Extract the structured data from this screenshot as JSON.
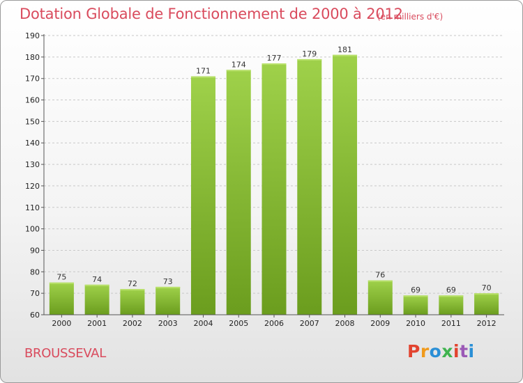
{
  "title": "Dotation Globale de Fonctionnement de 2000 à 2012",
  "unit_note": "(en milliers d'€)",
  "commune": "BROUSSEVAL",
  "logo_text": "Proxiti",
  "colors": {
    "title": "#d94b5d",
    "bar_top": "#9fd14a",
    "bar_bottom": "#6b9d1e",
    "grid": "#c8c8c8",
    "logo": [
      "#e2432f",
      "#f09a1c",
      "#2a8fd6",
      "#3fb34f",
      "#e2432f",
      "#9b59b6",
      "#2a8fd6"
    ]
  },
  "chart_data": {
    "type": "bar",
    "title": "Dotation Globale de Fonctionnement de 2000 à 2012",
    "xlabel": "",
    "ylabel": "",
    "categories": [
      "2000",
      "2001",
      "2002",
      "2003",
      "2004",
      "2005",
      "2006",
      "2007",
      "2008",
      "2009",
      "2010",
      "2011",
      "2012"
    ],
    "values": [
      75,
      74,
      72,
      73,
      171,
      174,
      177,
      179,
      181,
      76,
      69,
      69,
      70
    ],
    "ylim": [
      60,
      190
    ],
    "yticks": [
      60,
      70,
      80,
      90,
      100,
      110,
      120,
      130,
      140,
      150,
      160,
      170,
      180,
      190
    ],
    "grid": "horizontal dashed",
    "legend": "none"
  }
}
